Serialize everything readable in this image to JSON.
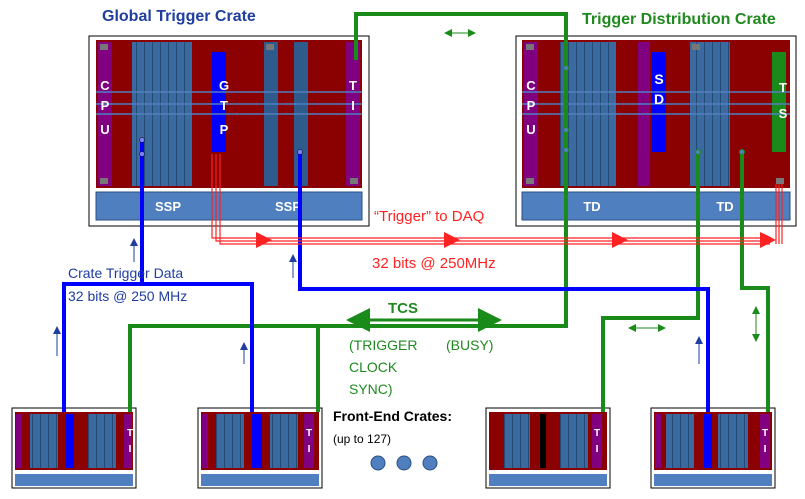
{
  "titles": {
    "global_crate": "Global Trigger Crate",
    "distribution_crate": "Trigger Distribution  Crate"
  },
  "global_crate": {
    "cpu_letters": [
      "C",
      "P",
      "U"
    ],
    "gtp_letters": [
      "G",
      "T",
      "P"
    ],
    "ti_letters": [
      "T",
      "I"
    ],
    "base_labels": [
      "SSP",
      "SSP"
    ]
  },
  "distribution_crate": {
    "cpu_letters": [
      "C",
      "P",
      "U"
    ],
    "sd_letters": [
      "S",
      "D"
    ],
    "ts_letters": [
      "T",
      "S"
    ],
    "base_labels": [
      "TD",
      "TD"
    ]
  },
  "labels": {
    "trigger_to_daq": "“Trigger” to DAQ",
    "trigger_rate": "32 bits @ 250MHz",
    "crate_trigger_data": "Crate Trigger Data",
    "crate_trigger_rate": "32 bits @ 250 MHz",
    "tcs": "TCS",
    "tcs_signals": [
      "(TRIGGER",
      "CLOCK",
      "SYNC)"
    ],
    "busy": "(BUSY)",
    "front_end_title": "Front-End Crates:",
    "front_end_count": "(up to 127)"
  },
  "front_end_crates": [
    {
      "letters": [
        "T",
        "I"
      ]
    },
    {
      "letters": [
        "T",
        "I"
      ]
    },
    {
      "letters": [
        "T",
        "I"
      ]
    },
    {
      "letters": [
        "T",
        "I"
      ]
    }
  ],
  "colors": {
    "crate_fill": "#ffffff",
    "maroon": "#8b0000",
    "purple": "#800080",
    "module_blue": "#2e5a8c",
    "base_blue": "#4f7fbf",
    "bright_blue": "#0000ff",
    "green": "#1a8a1a",
    "red": "#ff2222",
    "title_blue": "#1f3ea0",
    "title_green": "#208a20"
  }
}
